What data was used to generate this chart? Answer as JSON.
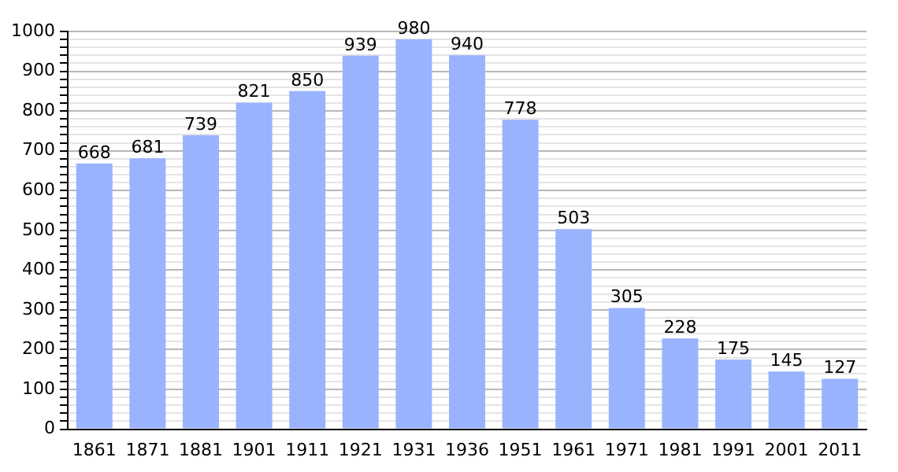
{
  "chart_data": {
    "type": "bar",
    "categories": [
      "1861",
      "1871",
      "1881",
      "1901",
      "1911",
      "1921",
      "1931",
      "1936",
      "1951",
      "1961",
      "1971",
      "1981",
      "1991",
      "2001",
      "2011"
    ],
    "values": [
      668,
      681,
      739,
      821,
      850,
      939,
      980,
      940,
      778,
      503,
      305,
      228,
      175,
      145,
      127
    ],
    "color": "#99b3ff",
    "ylim": [
      0,
      1000
    ],
    "yticks": [
      0,
      {
        "value": 20,
        "label": null
      },
      {
        "value": 40,
        "label": null
      },
      {
        "value": 60,
        "label": null
      },
      {
        "value": 80,
        "label": null
      },
      100,
      {
        "value": 120,
        "label": null
      },
      {
        "value": 140,
        "label": null
      },
      {
        "value": 160,
        "label": null
      },
      {
        "value": 180,
        "label": null
      },
      200,
      {
        "value": 220,
        "label": null
      },
      {
        "value": 240,
        "label": null
      },
      {
        "value": 260,
        "label": null
      },
      {
        "value": 280,
        "label": null
      },
      300,
      {
        "value": 320,
        "label": null
      },
      {
        "value": 340,
        "label": null
      },
      {
        "value": 360,
        "label": null
      },
      {
        "value": 380,
        "label": null
      },
      400,
      {
        "value": 420,
        "label": null
      },
      {
        "value": 440,
        "label": null
      },
      {
        "value": 460,
        "label": null
      },
      {
        "value": 480,
        "label": null
      },
      500,
      {
        "value": 520,
        "label": null
      },
      {
        "value": 540,
        "label": null
      },
      {
        "value": 560,
        "label": null
      },
      {
        "value": 580,
        "label": null
      },
      600,
      {
        "value": 620,
        "label": null
      },
      {
        "value": 640,
        "label": null
      },
      {
        "value": 660,
        "label": null
      },
      {
        "value": 680,
        "label": null
      },
      700,
      {
        "value": 720,
        "label": null
      },
      {
        "value": 740,
        "label": null
      },
      {
        "value": 760,
        "label": null
      },
      {
        "value": 780,
        "label": null
      },
      800,
      {
        "value": 820,
        "label": null
      },
      {
        "value": 840,
        "label": null
      },
      {
        "value": 860,
        "label": null
      },
      {
        "value": 880,
        "label": null
      },
      900,
      {
        "value": 920,
        "label": null
      },
      {
        "value": 940,
        "label": null
      },
      {
        "value": 960,
        "label": null
      },
      {
        "value": 980,
        "label": null
      },
      1000
    ],
    "grid": "y",
    "data_labels": true
  }
}
